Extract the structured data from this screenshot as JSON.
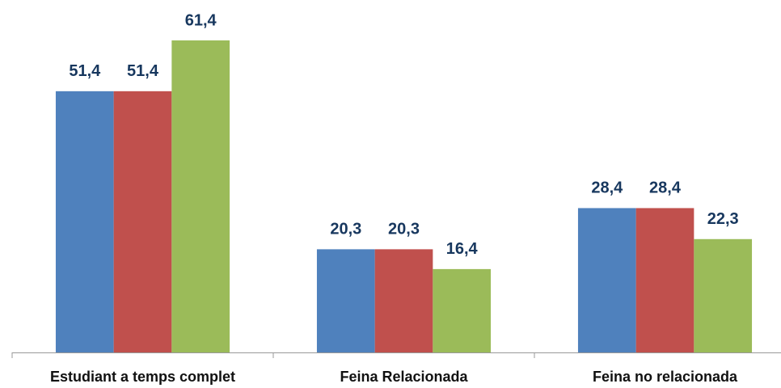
{
  "chart_data": {
    "type": "bar",
    "categories": [
      "Estudiant a temps complet",
      "Feina Relacionada",
      "Feina no relacionada"
    ],
    "series": [
      {
        "color": "#4f81bd",
        "values": [
          51.4,
          20.3,
          28.4
        ],
        "value_labels": [
          "51,4",
          "20,3",
          "28,4"
        ]
      },
      {
        "color": "#c0504d",
        "values": [
          51.4,
          20.3,
          28.4
        ],
        "value_labels": [
          "51,4",
          "20,3",
          "28,4"
        ]
      },
      {
        "color": "#9bbb59",
        "values": [
          61.4,
          16.4,
          22.3
        ],
        "value_labels": [
          "61,4",
          "16,4",
          "22,3"
        ]
      }
    ],
    "ylim": [
      0,
      70
    ]
  }
}
